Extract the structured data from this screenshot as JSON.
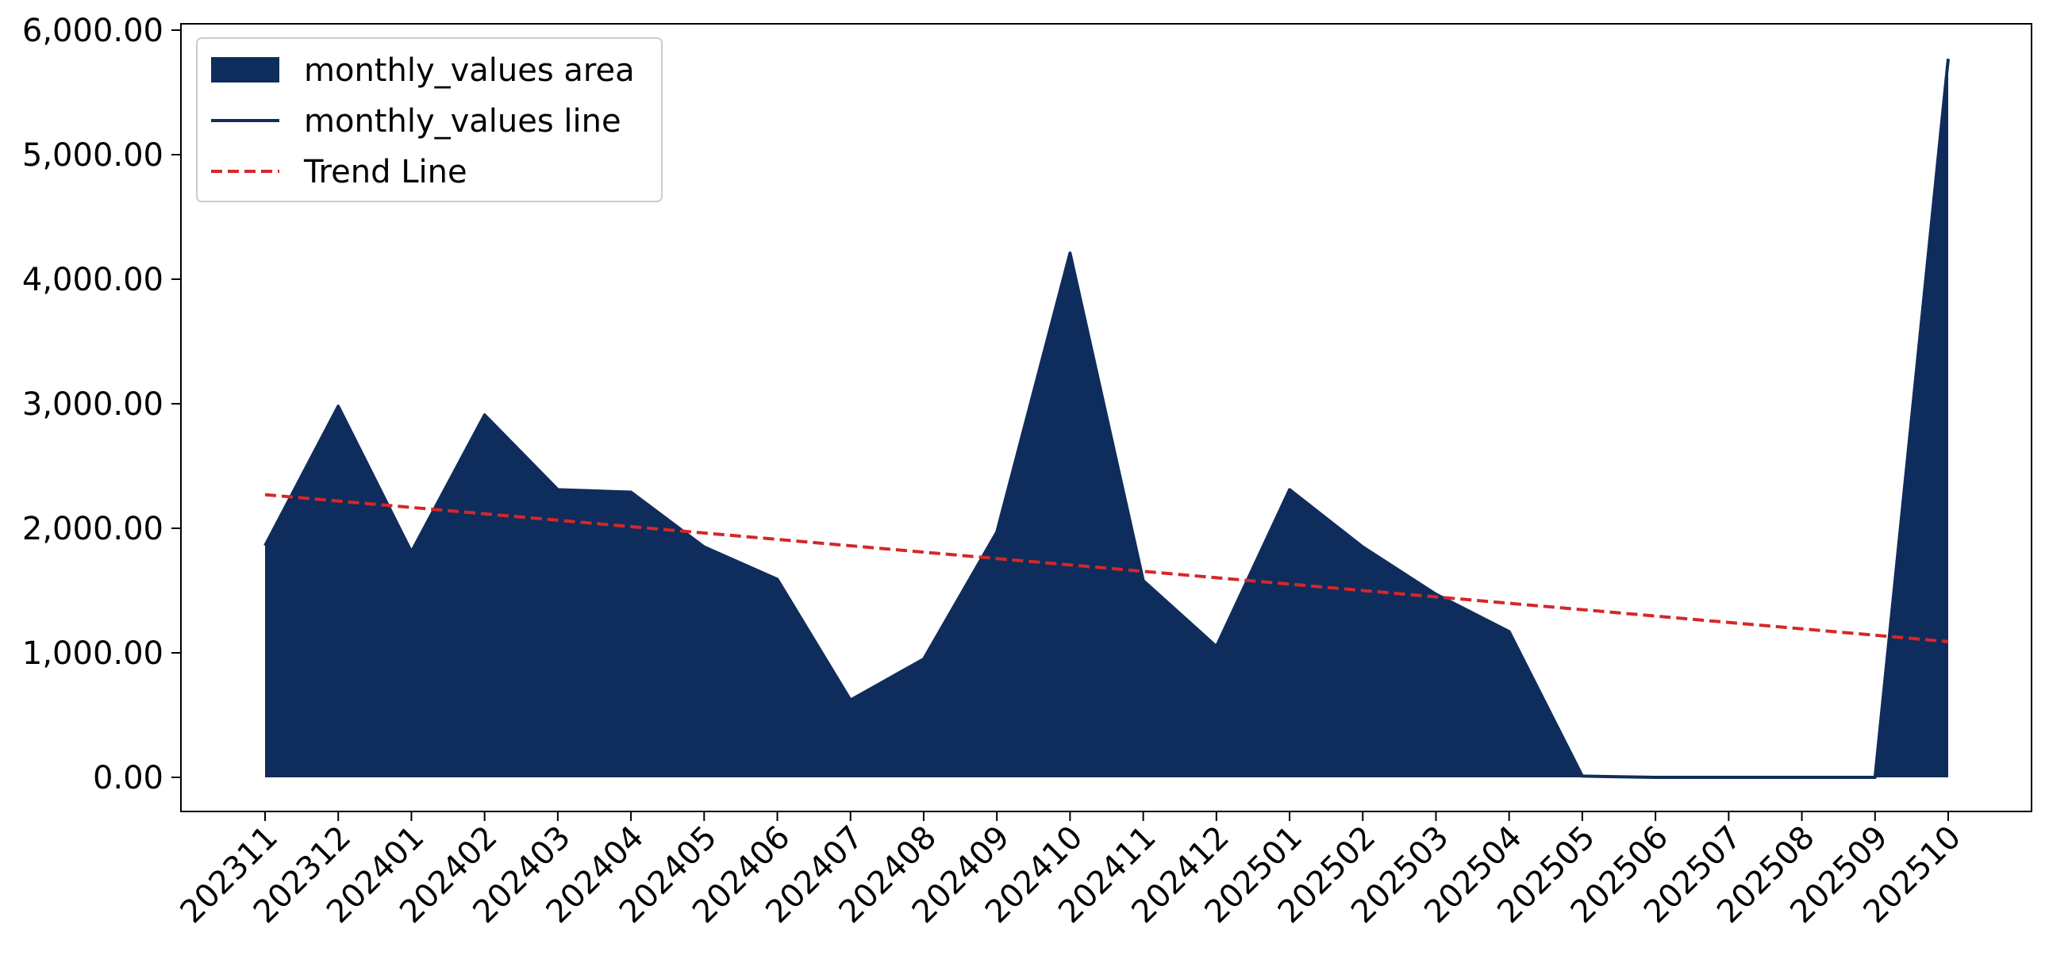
{
  "chart_data": {
    "type": "area",
    "title": "",
    "xlabel": "",
    "ylabel": "",
    "categories": [
      "202311",
      "202312",
      "202401",
      "202402",
      "202403",
      "202404",
      "202405",
      "202406",
      "202407",
      "202408",
      "202409",
      "202410",
      "202411",
      "202412",
      "202501",
      "202502",
      "202503",
      "202504",
      "202505",
      "202506",
      "202507",
      "202508",
      "202509",
      "202510"
    ],
    "series": [
      {
        "name": "monthly_values area",
        "kind": "area",
        "color": "#0f2d5c",
        "values": [
          1860,
          2980,
          1810,
          2910,
          2310,
          2290,
          1850,
          1590,
          620,
          950,
          1970,
          4210,
          1580,
          1050,
          2310,
          1850,
          1470,
          1170,
          10,
          0,
          0,
          0,
          0,
          5770
        ]
      },
      {
        "name": "monthly_values line",
        "kind": "line",
        "color": "#0f2d5c",
        "values": [
          1860,
          2980,
          1810,
          2910,
          2310,
          2290,
          1850,
          1590,
          620,
          950,
          1970,
          4210,
          1580,
          1050,
          2310,
          1850,
          1470,
          1170,
          10,
          0,
          0,
          0,
          0,
          5770
        ]
      },
      {
        "name": "Trend Line",
        "kind": "trend",
        "color": "#d62728",
        "dash": "dashed",
        "start": 2270,
        "end": 1090
      }
    ],
    "ylim": [
      -280,
      6000
    ],
    "yticks": [
      "0.00",
      "1,000.00",
      "2,000.00",
      "3,000.00",
      "4,000.00",
      "5,000.00",
      "6,000.00"
    ],
    "ytick_values": [
      0,
      1000,
      2000,
      3000,
      4000,
      5000,
      6000
    ],
    "grid": false,
    "legend_position": "top-left"
  }
}
